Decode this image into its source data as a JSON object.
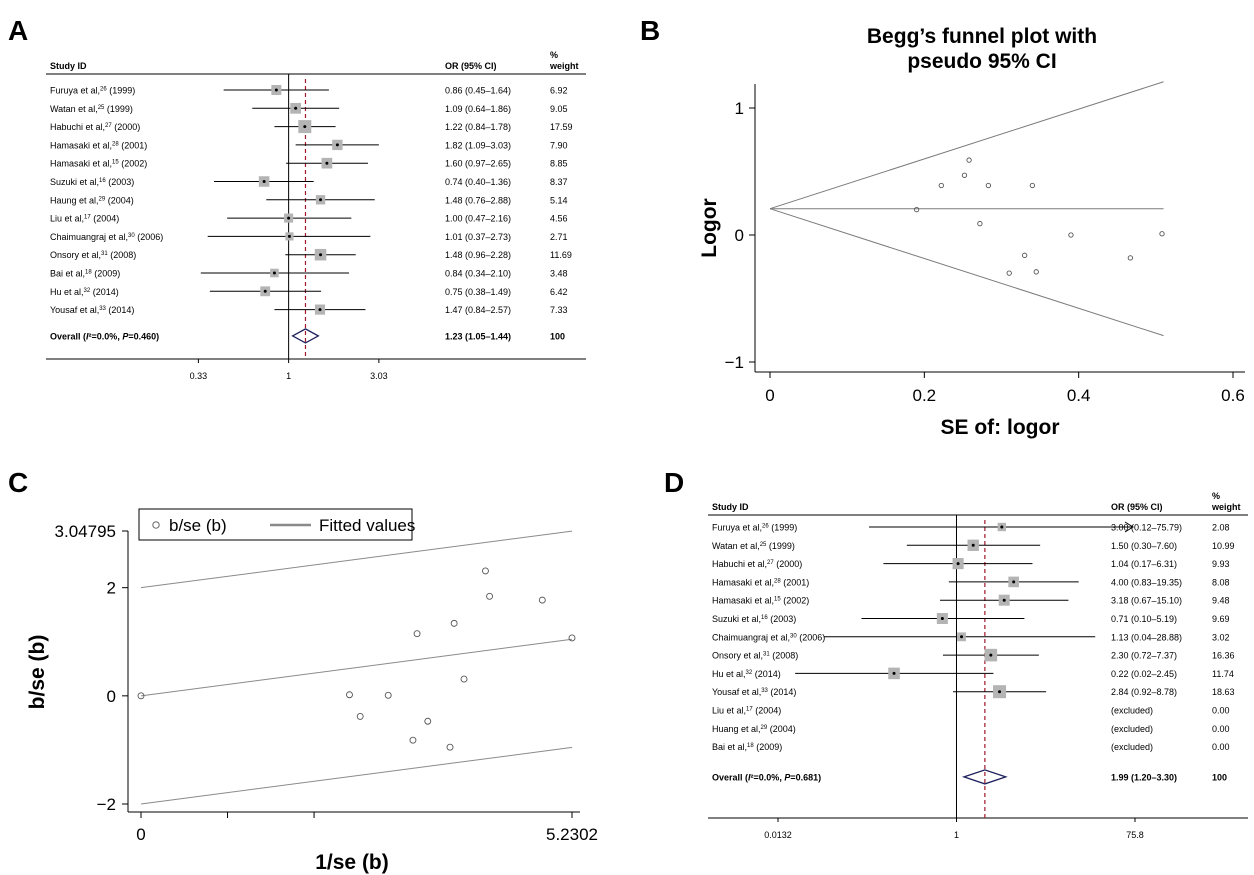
{
  "panels": {
    "A": "A",
    "B": "B",
    "C": "C",
    "D": "D"
  },
  "chart_data": [
    {
      "panel": "A",
      "type": "forest",
      "header": {
        "study": "Study ID",
        "or": "OR (95% CI)",
        "weight_top": "%",
        "weight_bottom": "weight"
      },
      "xscale": "log",
      "xlim": [
        0.28,
        6.5
      ],
      "ticks": [
        0.33,
        1,
        3.03
      ],
      "tick_labels": [
        "0.33",
        "1",
        "3.03"
      ],
      "pooled_line": 1.23,
      "studies": [
        {
          "name": "Furuya et al,",
          "ref": "26",
          "year": " (1999)",
          "or": 0.86,
          "lo": 0.45,
          "hi": 1.64,
          "or_text": "0.86 (0.45–1.64)",
          "weight": "6.92"
        },
        {
          "name": "Watan et al,",
          "ref": "25",
          "year": " (1999)",
          "or": 1.09,
          "lo": 0.64,
          "hi": 1.86,
          "or_text": "1.09 (0.64–1.86)",
          "weight": "9.05"
        },
        {
          "name": "Habuchi et al,",
          "ref": "27",
          "year": " (2000)",
          "or": 1.22,
          "lo": 0.84,
          "hi": 1.78,
          "or_text": "1.22 (0.84–1.78)",
          "weight": "17.59"
        },
        {
          "name": "Hamasaki et al,",
          "ref": "28",
          "year": " (2001)",
          "or": 1.82,
          "lo": 1.09,
          "hi": 3.03,
          "or_text": "1.82 (1.09–3.03)",
          "weight": "7.90"
        },
        {
          "name": "Hamasaki et al,",
          "ref": "15",
          "year": " (2002)",
          "or": 1.6,
          "lo": 0.97,
          "hi": 2.65,
          "or_text": "1.60 (0.97–2.65)",
          "weight": "8.85"
        },
        {
          "name": "Suzuki et al,",
          "ref": "16",
          "year": " (2003)",
          "or": 0.74,
          "lo": 0.4,
          "hi": 1.36,
          "or_text": "0.74 (0.40–1.36)",
          "weight": "8.37"
        },
        {
          "name": "Haung et al,",
          "ref": "29",
          "year": " (2004)",
          "or": 1.48,
          "lo": 0.76,
          "hi": 2.88,
          "or_text": "1.48 (0.76–2.88)",
          "weight": "5.14"
        },
        {
          "name": "Liu et al,",
          "ref": "17",
          "year": " (2004)",
          "or": 1.0,
          "lo": 0.47,
          "hi": 2.16,
          "or_text": "1.00 (0.47–2.16)",
          "weight": "4.56"
        },
        {
          "name": "Chaimuangraj et al,",
          "ref": "30",
          "year": " (2006)",
          "or": 1.01,
          "lo": 0.37,
          "hi": 2.73,
          "or_text": "1.01 (0.37–2.73)",
          "weight": "2.71"
        },
        {
          "name": "Onsory et al,",
          "ref": "31",
          "year": " (2008)",
          "or": 1.48,
          "lo": 0.96,
          "hi": 2.28,
          "or_text": "1.48 (0.96–2.28)",
          "weight": "11.69"
        },
        {
          "name": "Bai et al,",
          "ref": "18",
          "year": " (2009)",
          "or": 0.84,
          "lo": 0.34,
          "hi": 2.1,
          "or_text": "0.84 (0.34–2.10)",
          "weight": "3.48"
        },
        {
          "name": "Hu et al,",
          "ref": "32",
          "year": " (2014)",
          "or": 0.75,
          "lo": 0.38,
          "hi": 1.49,
          "or_text": "0.75 (0.38–1.49)",
          "weight": "6.42"
        },
        {
          "name": "Yousaf et al,",
          "ref": "33",
          "year": " (2014)",
          "or": 1.47,
          "lo": 0.84,
          "hi": 2.57,
          "or_text": "1.47 (0.84–2.57)",
          "weight": "7.33"
        }
      ],
      "overall": {
        "label_pre": "Overall (",
        "label_i": "I",
        "label_mid": "²=0.0%, ",
        "label_p": "P",
        "label_post": "=0.460)",
        "or": 1.23,
        "lo": 1.05,
        "hi": 1.44,
        "or_text": "1.23 (1.05–1.44)",
        "weight": "100"
      }
    },
    {
      "panel": "B",
      "type": "scatter",
      "title_line1": "Begg’s funnel plot with",
      "title_line2": "pseudo 95% CI",
      "xlabel": "SE of: logor",
      "ylabel": "Logor",
      "xlim": [
        0,
        0.6
      ],
      "ylim": [
        -1,
        1
      ],
      "xticks": [
        0,
        0.2,
        0.4,
        0.6
      ],
      "xtick_labels": [
        "0",
        "0.2",
        "0.4",
        "0.6"
      ],
      "yticks": [
        -1,
        0,
        1
      ],
      "ytick_labels": [
        "−1",
        "0",
        "1"
      ],
      "pooled": 0.207,
      "funnel_xmax": 0.51,
      "points": [
        {
          "x": 0.19,
          "y": 0.2
        },
        {
          "x": 0.222,
          "y": 0.39
        },
        {
          "x": 0.252,
          "y": 0.47
        },
        {
          "x": 0.258,
          "y": 0.59
        },
        {
          "x": 0.283,
          "y": 0.39
        },
        {
          "x": 0.272,
          "y": 0.09
        },
        {
          "x": 0.34,
          "y": 0.39
        },
        {
          "x": 0.31,
          "y": -0.3
        },
        {
          "x": 0.33,
          "y": -0.16
        },
        {
          "x": 0.345,
          "y": -0.29
        },
        {
          "x": 0.39,
          "y": 0.0
        },
        {
          "x": 0.467,
          "y": -0.18
        },
        {
          "x": 0.508,
          "y": 0.01
        }
      ]
    },
    {
      "panel": "C",
      "type": "scatter",
      "legend": {
        "points": "b/se (b)",
        "line": "Fitted values",
        "position": "top-left"
      },
      "xlabel": "1/se (b)",
      "ylabel": "b/se (b)",
      "xlim": [
        0,
        5.2302
      ],
      "ylim": [
        -2,
        3.04795
      ],
      "xtick_labels": [
        "0",
        "5.2302"
      ],
      "xticks_minor": [
        1.05,
        2.1
      ],
      "yticks": [
        -2,
        0,
        2,
        3.04795
      ],
      "ytick_labels": [
        "−2",
        "0",
        "2",
        "3.04795"
      ],
      "fit": {
        "intercept": 0,
        "slope": 0.2,
        "band": 2
      },
      "points": [
        {
          "x": 0,
          "y": 0
        },
        {
          "x": 2.53,
          "y": 0.02
        },
        {
          "x": 2.66,
          "y": -0.38
        },
        {
          "x": 3.0,
          "y": 0.01
        },
        {
          "x": 3.35,
          "y": 1.15
        },
        {
          "x": 3.3,
          "y": -0.82
        },
        {
          "x": 3.48,
          "y": -0.47
        },
        {
          "x": 3.8,
          "y": 1.34
        },
        {
          "x": 3.75,
          "y": -0.95
        },
        {
          "x": 3.92,
          "y": 0.31
        },
        {
          "x": 4.18,
          "y": 2.31
        },
        {
          "x": 4.23,
          "y": 1.84
        },
        {
          "x": 4.87,
          "y": 1.77
        },
        {
          "x": 5.2302,
          "y": 1.07
        }
      ]
    },
    {
      "panel": "D",
      "type": "forest",
      "header": {
        "study": "Study ID",
        "or": "OR (95% CI)",
        "weight_top": "%",
        "weight_bottom": "weight"
      },
      "xscale": "log",
      "xlim": [
        0.0132,
        75.8
      ],
      "ticks": [
        0.0132,
        1,
        75.8
      ],
      "tick_labels": [
        "0.0132",
        "1",
        "75.8"
      ],
      "pooled_line": 1.99,
      "studies": [
        {
          "name": "Furuya et al,",
          "ref": "26",
          "year": " (1999)",
          "or": 3.0,
          "lo": 0.12,
          "hi": 75.79,
          "arrow": true,
          "or_text": "3.00 (0.12–75.79)",
          "weight": "2.08"
        },
        {
          "name": "Watan et al,",
          "ref": "25",
          "year": " (1999)",
          "or": 1.5,
          "lo": 0.3,
          "hi": 7.6,
          "or_text": "1.50 (0.30–7.60)",
          "weight": "10.99"
        },
        {
          "name": "Habuchi et al,",
          "ref": "27",
          "year": " (2000)",
          "or": 1.04,
          "lo": 0.17,
          "hi": 6.31,
          "or_text": "1.04 (0.17–6.31)",
          "weight": "9.93"
        },
        {
          "name": "Hamasaki et al,",
          "ref": "28",
          "year": " (2001)",
          "or": 4.0,
          "lo": 0.83,
          "hi": 19.35,
          "or_text": "4.00 (0.83–19.35)",
          "weight": "8.08"
        },
        {
          "name": "Hamasaki et al,",
          "ref": "15",
          "year": " (2002)",
          "or": 3.18,
          "lo": 0.67,
          "hi": 15.1,
          "or_text": "3.18 (0.67–15.10)",
          "weight": "9.48"
        },
        {
          "name": "Suzuki et al,",
          "ref": "16",
          "year": " (2003)",
          "or": 0.71,
          "lo": 0.1,
          "hi": 5.19,
          "or_text": "0.71 (0.10–5.19)",
          "weight": "9.69"
        },
        {
          "name": "Chaimuangraj et al,",
          "ref": "30",
          "year": " (2006)",
          "or": 1.13,
          "lo": 0.04,
          "hi": 28.88,
          "or_text": "1.13 (0.04–28.88)",
          "weight": "3.02"
        },
        {
          "name": "Onsory et al,",
          "ref": "31",
          "year": " (2008)",
          "or": 2.3,
          "lo": 0.72,
          "hi": 7.37,
          "or_text": "2.30 (0.72–7.37)",
          "weight": "16.36"
        },
        {
          "name": "Hu et al,",
          "ref": "32",
          "year": " (2014)",
          "or": 0.22,
          "lo": 0.02,
          "hi": 2.45,
          "or_text": "0.22 (0.02–2.45)",
          "weight": "11.74"
        },
        {
          "name": "Yousaf et al,",
          "ref": "33",
          "year": " (2014)",
          "or": 2.84,
          "lo": 0.92,
          "hi": 8.78,
          "or_text": "2.84 (0.92–8.78)",
          "weight": "18.63"
        },
        {
          "name": "Liu et al,",
          "ref": "17",
          "year": " (2004)",
          "or": null,
          "or_text": "(excluded)",
          "weight": "0.00"
        },
        {
          "name": "Huang et al,",
          "ref": "29",
          "year": " (2004)",
          "or": null,
          "or_text": "(excluded)",
          "weight": "0.00"
        },
        {
          "name": "Bai et al,",
          "ref": "18",
          "year": " (2009)",
          "or": null,
          "or_text": "(excluded)",
          "weight": "0.00"
        }
      ],
      "overall": {
        "label_pre": "Overall (",
        "label_i": "I",
        "label_mid": "²=0.0%, ",
        "label_p": "P",
        "label_post": "=0.681)",
        "or": 1.99,
        "lo": 1.2,
        "hi": 3.3,
        "or_text": "1.99 (1.20–3.30)",
        "weight": "100"
      }
    }
  ],
  "colors": {
    "diamond": "#1c1f5c",
    "pooled_line": "#a0182a",
    "square": "#b4b4b4",
    "funnel": "#7a7a7a",
    "axis": "#000000"
  }
}
